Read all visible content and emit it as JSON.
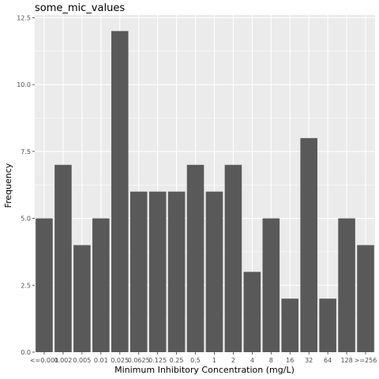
{
  "chart_data": {
    "type": "bar",
    "title": "some_mic_values",
    "xlabel": "Minimum Inhibitory Concentration (mg/L)",
    "ylabel": "Frequency",
    "categories": [
      "<=0.001",
      "0.002",
      "0.005",
      "0.01",
      "0.025",
      "0.0625",
      "0.125",
      "0.25",
      "0.5",
      "1",
      "2",
      "4",
      "8",
      "16",
      "32",
      "64",
      "128",
      ">=256"
    ],
    "values": [
      5,
      7,
      4,
      5,
      12,
      6,
      6,
      6,
      7,
      6,
      7,
      3,
      5,
      2,
      8,
      2,
      5,
      4
    ],
    "ylim": [
      0,
      12.6
    ],
    "yticks": [
      0,
      2.5,
      5,
      7.5,
      10,
      12.5
    ],
    "ytick_labels": [
      "0.0",
      "2.5",
      "5.0",
      "7.5",
      "10.0",
      "12.5"
    ],
    "grid": true,
    "colors": {
      "bar": "#595959",
      "panel": "#ebebeb",
      "grid_major": "#ffffff"
    }
  }
}
